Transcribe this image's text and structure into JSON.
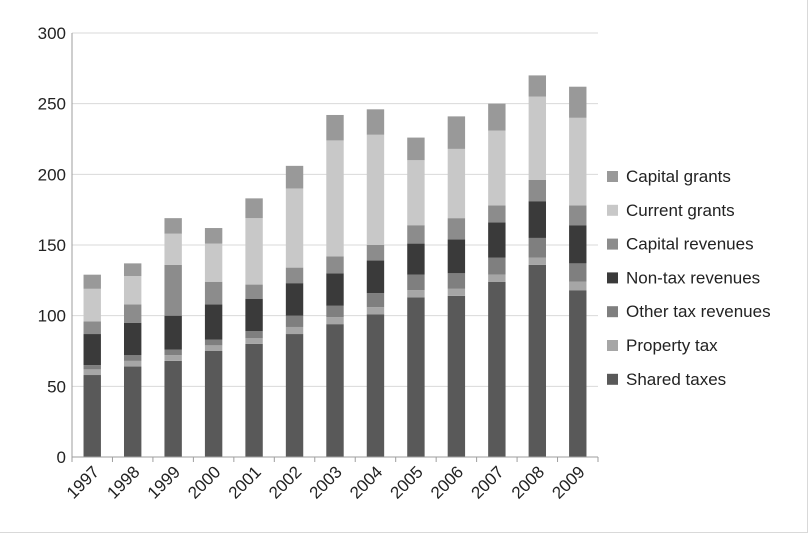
{
  "chart_data": {
    "type": "bar",
    "stacked": true,
    "title": "",
    "xlabel": "",
    "ylabel": "",
    "ylim": [
      0,
      300
    ],
    "yticks": [
      0,
      50,
      100,
      150,
      200,
      250,
      300
    ],
    "grid": true,
    "legend_position": "right",
    "categories": [
      "1997",
      "1998",
      "1999",
      "2000",
      "2001",
      "2002",
      "2003",
      "2004",
      "2005",
      "2006",
      "2007",
      "2008",
      "2009"
    ],
    "series": [
      {
        "name": "Shared taxes",
        "color": "#595959",
        "values": [
          58,
          64,
          68,
          75,
          80,
          87,
          94,
          101,
          113,
          114,
          124,
          136,
          118
        ]
      },
      {
        "name": "Property tax",
        "color": "#a6a6a6",
        "values": [
          4,
          4,
          4,
          4,
          4,
          5,
          5,
          5,
          5,
          5,
          5,
          5,
          6
        ]
      },
      {
        "name": "Other tax revenues",
        "color": "#7f7f7f",
        "values": [
          3,
          4,
          4,
          4,
          5,
          8,
          8,
          10,
          11,
          11,
          12,
          14,
          13
        ]
      },
      {
        "name": "Non-tax revenues",
        "color": "#3a3a3a",
        "values": [
          22,
          23,
          24,
          25,
          23,
          23,
          23,
          23,
          22,
          24,
          25,
          26,
          27
        ]
      },
      {
        "name": "Capital revenues",
        "color": "#8c8c8c",
        "values": [
          9,
          13,
          36,
          16,
          10,
          11,
          12,
          11,
          13,
          15,
          12,
          15,
          14
        ]
      },
      {
        "name": "Current grants",
        "color": "#c8c8c8",
        "values": [
          23,
          20,
          22,
          27,
          47,
          56,
          82,
          78,
          46,
          49,
          53,
          59,
          62
        ]
      },
      {
        "name": "Capital grants",
        "color": "#999999",
        "values": [
          10,
          9,
          11,
          11,
          14,
          16,
          18,
          18,
          16,
          23,
          19,
          15,
          22
        ]
      }
    ]
  }
}
